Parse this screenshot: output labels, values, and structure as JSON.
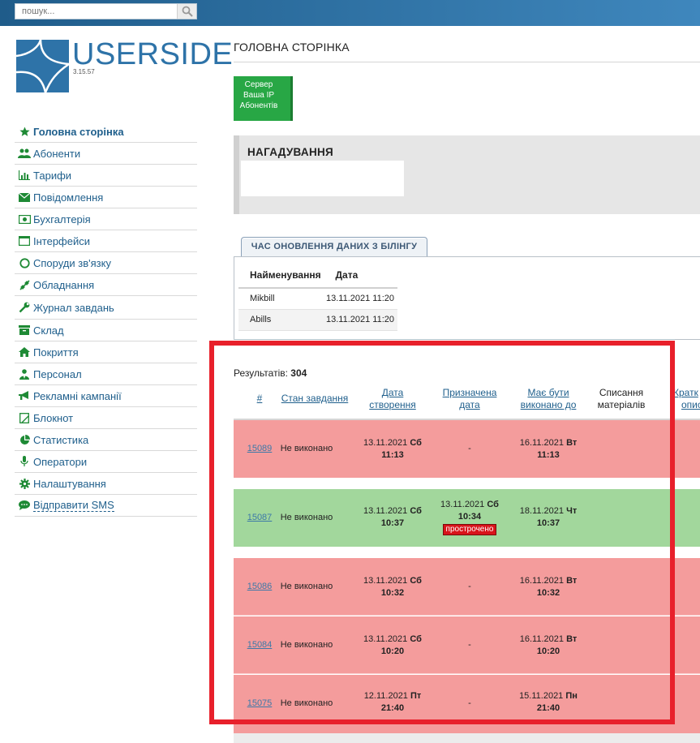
{
  "search": {
    "placeholder": "пошук..."
  },
  "logo": {
    "name": "USERSIDE",
    "version": "3.15.57"
  },
  "sidebar": {
    "items": [
      {
        "label": "Головна сторінка",
        "icon": "star-icon"
      },
      {
        "label": "Абоненти",
        "icon": "users-icon"
      },
      {
        "label": "Тарифи",
        "icon": "bar-chart-icon"
      },
      {
        "label": "Повідомлення",
        "icon": "envelope-icon"
      },
      {
        "label": "Бухгалтерія",
        "icon": "money-icon"
      },
      {
        "label": "Інтерфейси",
        "icon": "window-icon"
      },
      {
        "label": "Споруди зв'язку",
        "icon": "circle-icon"
      },
      {
        "label": "Обладнання",
        "icon": "plug-icon"
      },
      {
        "label": "Журнал завдань",
        "icon": "wrench-icon"
      },
      {
        "label": "Склад",
        "icon": "archive-icon"
      },
      {
        "label": "Покриття",
        "icon": "home-icon"
      },
      {
        "label": "Персонал",
        "icon": "user-tie-icon"
      },
      {
        "label": "Рекламні кампанії",
        "icon": "bullhorn-icon"
      },
      {
        "label": "Блокнот",
        "icon": "notepad-icon"
      },
      {
        "label": "Статистика",
        "icon": "pie-chart-icon"
      },
      {
        "label": "Оператори",
        "icon": "microphone-icon"
      },
      {
        "label": "Налаштування",
        "icon": "gear-icon"
      },
      {
        "label": "Відправити SMS",
        "icon": "chat-icon"
      }
    ]
  },
  "page": {
    "title": "ГОЛОВНА СТОРІНКА"
  },
  "status_box": {
    "line1": "Сервер",
    "line2": "Ваша IP",
    "line3": "Абонентів"
  },
  "reminder": {
    "title": "НАГАДУВАННЯ"
  },
  "billing": {
    "tab_label": "ЧАС ОНОВЛЕННЯ ДАНИХ З БІЛІНГУ",
    "col_name": "Найменування",
    "col_date": "Дата",
    "rows": [
      {
        "name": "Mikbill",
        "date": "13.11.2021 11:20"
      },
      {
        "name": "Abills",
        "date": "13.11.2021 11:20"
      }
    ]
  },
  "tasks": {
    "results_label": "Результатів:",
    "results_count": "304",
    "headers": {
      "id": "#",
      "status": "Стан завдання",
      "created_1": "Дата",
      "created_2": "створення",
      "assigned_1": "Призначена",
      "assigned_2": "дата",
      "due_1": "Має бути",
      "due_2": "виконано до",
      "materials_1": "Списання",
      "materials_2": "матеріалів",
      "short_1": "Кратк",
      "short_2": "опис"
    },
    "overdue_label": "прострочено",
    "rows": [
      {
        "id": "15089",
        "status": "Не виконано",
        "created_date": "13.11.2021",
        "created_day": "Сб",
        "created_time": "11:13",
        "assigned": "-",
        "due_date": "16.11.2021",
        "due_day": "Вт",
        "due_time": "11:13",
        "color": "#f49c9c"
      },
      {
        "id": "15087",
        "status": "Не виконано",
        "created_date": "13.11.2021",
        "created_day": "Сб",
        "created_time": "10:37",
        "assigned_date": "13.11.2021",
        "assigned_day": "Сб",
        "assigned_time": "10:34",
        "due_date": "18.11.2021",
        "due_day": "Чт",
        "due_time": "10:37",
        "color": "#a2d79c"
      },
      {
        "id": "15086",
        "status": "Не виконано",
        "created_date": "13.11.2021",
        "created_day": "Сб",
        "created_time": "10:32",
        "assigned": "-",
        "due_date": "16.11.2021",
        "due_day": "Вт",
        "due_time": "10:32",
        "color": "#f49c9c"
      },
      {
        "id": "15084",
        "status": "Не виконано",
        "created_date": "13.11.2021",
        "created_day": "Сб",
        "created_time": "10:20",
        "assigned": "-",
        "due_date": "16.11.2021",
        "due_day": "Вт",
        "due_time": "10:20",
        "color": "#f49c9c"
      },
      {
        "id": "15075",
        "status": "Не виконано",
        "created_date": "12.11.2021",
        "created_day": "Пт",
        "created_time": "21:40",
        "assigned": "-",
        "due_date": "15.11.2021",
        "due_day": "Пн",
        "due_time": "21:40",
        "color": "#f49c9c"
      }
    ]
  }
}
